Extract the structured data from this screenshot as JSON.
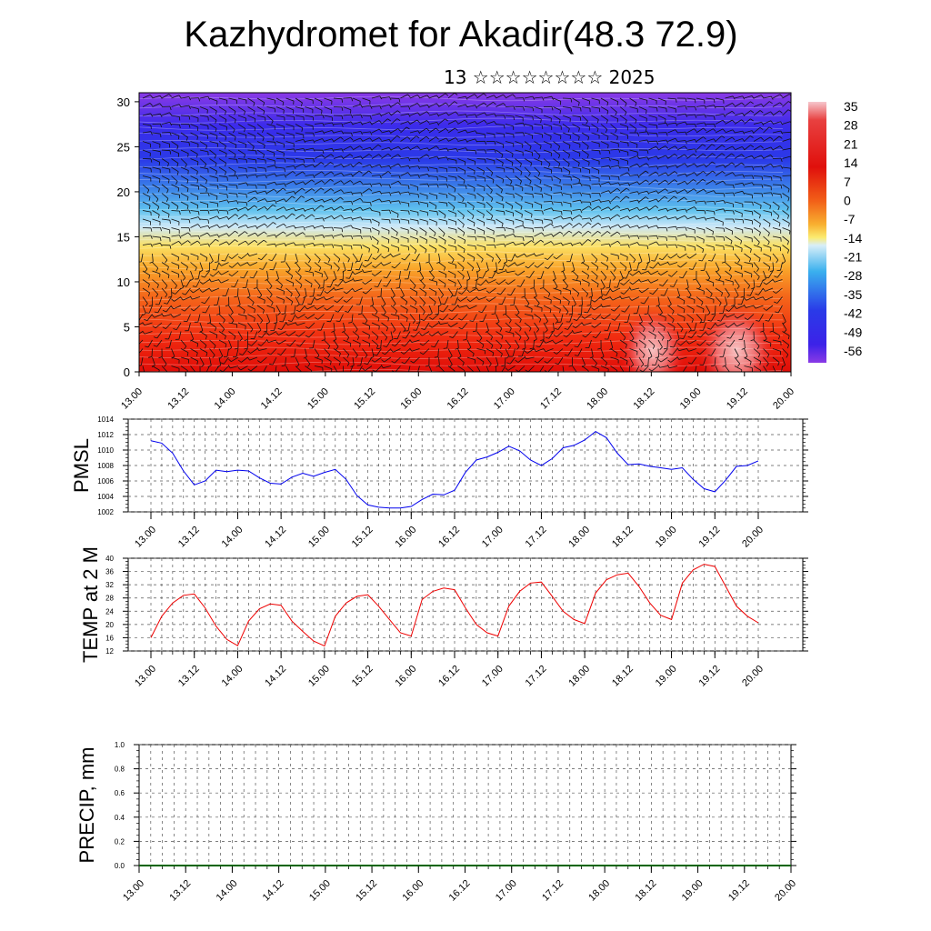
{
  "title": "Kazhydromet for Akadir(48.3 72.9)",
  "subtitle": "13 ☆☆☆☆☆☆☆☆ 2025",
  "chart_data": [
    {
      "type": "heatmap",
      "title": "Kazhydromet for Akadir(48.3 72.9)",
      "subtitle": "13 ☆☆☆☆☆☆☆☆ 2025",
      "x_ticks": [
        "13.00",
        "13.12",
        "14.00",
        "14.12",
        "15.00",
        "15.12",
        "16.00",
        "16.12",
        "17.00",
        "17.12",
        "18.00",
        "18.12",
        "19.00",
        "19.12",
        "20.00"
      ],
      "ylim": [
        0,
        31
      ],
      "y_ticks": [
        0,
        5,
        10,
        15,
        20,
        25,
        30
      ],
      "colorbar_labels": [
        "35",
        "28",
        "21",
        "14",
        "7",
        "0",
        "-7",
        "-14",
        "-21",
        "-28",
        "-35",
        "-42",
        "-49",
        "-56"
      ],
      "overlay": "wind barbs",
      "colors": {
        "warm": "#e8100c",
        "mid": "#fbe66a",
        "cold": "#1e20e8",
        "coldest": "#8a2be2"
      }
    },
    {
      "type": "line",
      "ylabel": "PMSL",
      "ylim": [
        1002,
        1014
      ],
      "y_ticks": [
        1002,
        1004,
        1006,
        1008,
        1010,
        1012,
        1014
      ],
      "x_ticks": [
        "13.00",
        "13.12",
        "14.00",
        "14.12",
        "15.00",
        "15.12",
        "16.00",
        "16.12",
        "17.00",
        "17.12",
        "18.00",
        "18.12",
        "19.00",
        "19.12",
        "20.00"
      ],
      "color": "#0000ee",
      "series": [
        {
          "values": [
            1011.2,
            1010.9,
            1009.6,
            1007.3,
            1005.5,
            1006.0,
            1007.4,
            1007.2,
            1007.4,
            1007.3,
            1006.4,
            1005.7,
            1005.6,
            1006.5,
            1007.0,
            1006.6,
            1007.1,
            1007.5,
            1006.2,
            1004.1,
            1002.9,
            1002.6,
            1002.5,
            1002.5,
            1002.7,
            1003.6,
            1004.3,
            1004.2,
            1004.8,
            1007.1,
            1008.7,
            1009.1,
            1009.7,
            1010.5,
            1009.9,
            1008.7,
            1008.0,
            1008.9,
            1010.3,
            1010.6,
            1011.3,
            1012.4,
            1011.6,
            1009.6,
            1008.1,
            1008.2,
            1007.9,
            1007.7,
            1007.5,
            1007.7,
            1006.2,
            1005.0,
            1004.6,
            1006.1,
            1007.9,
            1008.0,
            1008.6
          ]
        }
      ]
    },
    {
      "type": "line",
      "ylabel": "TEMP at 2 M",
      "ylim": [
        12,
        40
      ],
      "y_ticks": [
        12,
        16,
        20,
        24,
        28,
        32,
        36,
        40
      ],
      "x_ticks": [
        "13.00",
        "13.12",
        "14.00",
        "14.12",
        "15.00",
        "15.12",
        "16.00",
        "16.12",
        "17.00",
        "17.12",
        "18.00",
        "18.12",
        "19.00",
        "19.12",
        "20.00"
      ],
      "color": "#ee0000",
      "series": [
        {
          "values": [
            16.0,
            22.5,
            26.5,
            28.8,
            29.2,
            25.0,
            19.5,
            15.5,
            13.6,
            21.0,
            24.7,
            26.2,
            25.8,
            21.0,
            17.9,
            15.0,
            13.5,
            22.5,
            26.5,
            28.5,
            29.0,
            25.5,
            21.5,
            17.5,
            16.5,
            27.5,
            30.0,
            31.0,
            30.5,
            25.0,
            20.0,
            17.5,
            16.5,
            25.5,
            30.0,
            32.5,
            32.8,
            28.5,
            24.0,
            21.5,
            20.3,
            29.5,
            33.5,
            35.0,
            35.5,
            31.5,
            26.5,
            22.8,
            21.5,
            32.5,
            36.5,
            38.2,
            37.5,
            31.5,
            25.5,
            22.5,
            20.5
          ]
        }
      ]
    },
    {
      "type": "line",
      "ylabel": "PRECIP, mm",
      "ylim": [
        0,
        1.0
      ],
      "y_ticks": [
        "0.0",
        "0.2",
        "0.4",
        "0.6",
        "0.8",
        "1.0"
      ],
      "x_ticks": [
        "13.00",
        "13.12",
        "14.00",
        "14.12",
        "15.00",
        "15.12",
        "16.00",
        "16.12",
        "17.00",
        "17.12",
        "18.00",
        "18.12",
        "19.00",
        "19.12",
        "20.00"
      ],
      "color": "#006400",
      "series": [
        {
          "values": [
            0,
            0,
            0,
            0,
            0,
            0,
            0,
            0,
            0,
            0,
            0,
            0,
            0,
            0,
            0,
            0,
            0,
            0,
            0,
            0,
            0,
            0,
            0,
            0,
            0,
            0,
            0,
            0,
            0,
            0,
            0,
            0,
            0,
            0,
            0,
            0,
            0,
            0,
            0,
            0,
            0,
            0,
            0,
            0,
            0,
            0,
            0,
            0,
            0,
            0,
            0,
            0,
            0,
            0,
            0,
            0,
            0
          ]
        }
      ]
    }
  ]
}
